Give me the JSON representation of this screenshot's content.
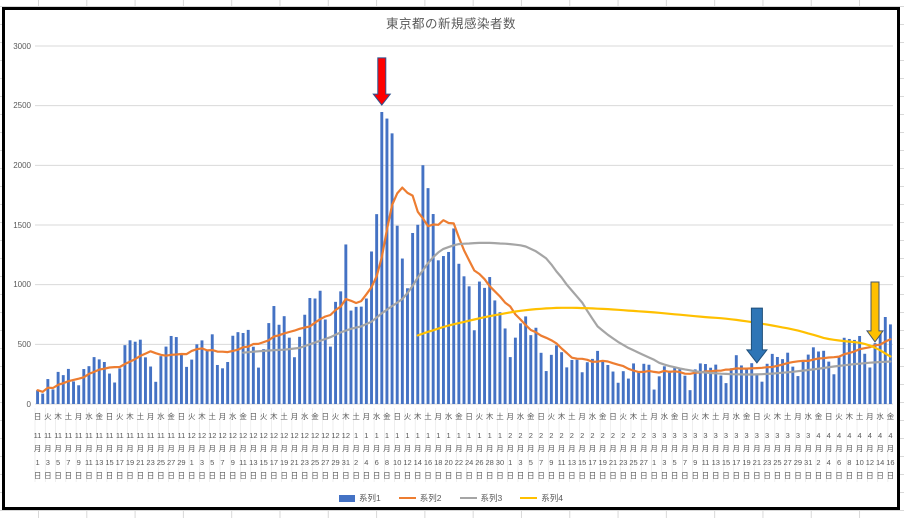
{
  "chart_data": {
    "type": "combo-bar-line",
    "title": "東京都の新規感染者数",
    "legend_position": "bottom",
    "y_axis": {
      "min": 0,
      "max": 3000,
      "step": 500,
      "tick_labels": [
        "0",
        "500",
        "1000",
        "1500",
        "2000",
        "2500",
        "3000"
      ]
    },
    "x_axis": {
      "tick_interval_days": 2,
      "tick_labels": [
        "日 11月1日",
        "火 11月3日",
        "木 11月5日",
        "土 11月7日",
        "月 11月9日",
        "水 11月11日",
        "金 11月13日",
        "日 11月15日",
        "火 11月17日",
        "木 11月19日",
        "土 11月21日",
        "月 11月23日",
        "水 11月25日",
        "金 11月27日",
        "日 11月29日",
        "火 12月1日",
        "木 12月3日",
        "土 12月5日",
        "月 12月7日",
        "水 12月9日",
        "金 12月11日",
        "日 12月13日",
        "火 12月15日",
        "木 12月17日",
        "土 12月19日",
        "月 12月21日",
        "水 12月23日",
        "金 12月25日",
        "日 12月27日",
        "火 12月29日",
        "木 12月31日",
        "土 1月2日",
        "月 1月4日",
        "水 1月6日",
        "金 1月8日",
        "日 1月10日",
        "火 1月12日",
        "木 1月14日",
        "土 1月16日",
        "月 1月18日",
        "水 1月20日",
        "金 1月22日",
        "日 1月24日",
        "火 1月26日",
        "木 1月28日",
        "土 1月30日",
        "月 2月1日",
        "水 2月3日",
        "金 2月5日",
        "日 2月7日",
        "火 2月9日",
        "木 2月11日",
        "土 2月13日",
        "月 2月15日",
        "水 2月17日",
        "金 2月19日",
        "日 2月21日",
        "火 2月23日",
        "木 2月25日",
        "土 2月27日",
        "月 3月1日",
        "水 3月3日",
        "金 3月5日",
        "日 3月7日",
        "火 3月9日",
        "木 3月11日",
        "土 3月13日",
        "月 3月15日",
        "水 3月17日",
        "金 3月19日",
        "日 3月21日",
        "火 3月23日",
        "木 3月25日",
        "土 3月27日",
        "月 3月29日",
        "水 3月31日",
        "金 4月2日",
        "日 4月4日",
        "火 4月6日",
        "木 4月8日",
        "土 4月10日",
        "月 4月12日",
        "水 4月14日",
        "金 4月16日"
      ]
    },
    "series": [
      {
        "name": "系列1",
        "type": "bar",
        "color": "#4472C4",
        "start_index": 0,
        "values": [
          116,
          87,
          209,
          122,
          269,
          242,
          294,
          189,
          157,
          293,
          317,
          393,
          374,
          352,
          255,
          180,
          298,
          493,
          534,
          522,
          539,
          391,
          314,
          186,
          401,
          481,
          570,
          561,
          418,
          311,
          372,
          500,
          533,
          449,
          584,
          327,
          299,
          352,
          572,
          602,
          595,
          621,
          480,
          305,
          460,
          678,
          821,
          664,
          736,
          556,
          392,
          563,
          748,
          888,
          884,
          949,
          708,
          481,
          856,
          944,
          1337,
          783,
          814,
          816,
          884,
          1278,
          1591,
          2447,
          2392,
          2268,
          1494,
          1219,
          970,
          1433,
          1502,
          2001,
          1809,
          1592,
          1204,
          1240,
          1274,
          1471,
          1175,
          1070,
          986,
          618,
          1026,
          973,
          1064,
          868,
          769,
          633,
          393,
          556,
          676,
          734,
          577,
          639,
          429,
          276,
          412,
          491,
          434,
          307,
          369,
          371,
          266,
          350,
          378,
          445,
          353,
          327,
          272,
          178,
          275,
          213,
          340,
          270,
          337,
          329,
          121,
          232,
          316,
          279,
          301,
          293,
          237,
          116,
          290,
          340,
          335,
          304,
          330,
          239,
          175,
          300,
          409,
          323,
          303,
          342,
          256,
          187,
          337,
          420,
          394,
          376,
          430,
          313,
          234,
          364,
          414,
          475,
          440,
          446,
          355,
          249,
          399,
          555,
          545,
          537,
          570,
          421,
          306,
          510,
          591,
          729,
          667
        ]
      },
      {
        "name": "系列2",
        "type": "line",
        "color": "#ED7D31",
        "start_index": 0,
        "values": [
          116,
          102,
          137,
          134,
          161,
          174,
          191,
          202,
          212,
          224,
          252,
          269,
          288,
          296,
          306,
          309,
          310,
          335,
          355,
          376,
          403,
          422,
          442,
          426,
          412,
          405,
          412,
          415,
          419,
          418,
          445,
          459,
          466,
          449,
          452,
          439,
          438,
          435,
          445,
          455,
          476,
          481,
          503,
          504,
          519,
          534,
          566,
          576,
          592,
          603,
          615,
          630,
          640,
          650,
          681,
          711,
          733,
          746,
          788,
          816,
          880,
          865,
          846,
          862,
          919,
          979,
          1072,
          1230,
          1460,
          1668,
          1765,
          1813,
          1769,
          1746,
          1611,
          1555,
          1490,
          1504,
          1502,
          1540,
          1517,
          1513,
          1395,
          1289,
          1203,
          1119,
          1089,
          1046,
          987,
          944,
          901,
          850,
          818,
          751,
          708,
          661,
          620,
          601,
          572,
          555,
          535,
          508,
          465,
          427,
          388,
          380,
          379,
          370,
          354,
          355,
          362,
          356,
          342,
          329,
          318,
          295,
          280,
          268,
          269,
          277,
          269,
          263,
          278,
          269,
          274,
          267,
          254,
          253,
          262,
          265,
          273,
          274,
          279,
          279,
          288,
          289,
          299,
          297,
          297,
          299,
          301,
          303,
          308,
          310,
          320,
          330,
          343,
          351,
          358,
          362,
          361,
          372,
          381,
          384,
          390,
          392,
          397,
          417,
          427,
          441,
          459,
          468,
          476,
          492,
          497,
          523,
          542
        ]
      },
      {
        "name": "系列3",
        "type": "line",
        "color": "#A5A5A5",
        "start_index": 40,
        "values": [
          430,
          434,
          438,
          442,
          445,
          448,
          451,
          453,
          455,
          460,
          465,
          470,
          485,
          500,
          515,
          530,
          545,
          560,
          580,
          600,
          615,
          630,
          640,
          650,
          670,
          690,
          725,
          760,
          790,
          820,
          850,
          880,
          930,
          990,
          1060,
          1120,
          1180,
          1230,
          1270,
          1300,
          1315,
          1330,
          1340,
          1343,
          1345,
          1348,
          1350,
          1350,
          1350,
          1348,
          1345,
          1343,
          1340,
          1335,
          1330,
          1320,
          1300,
          1280,
          1250,
          1220,
          1170,
          1110,
          1060,
          1000,
          950,
          900,
          850,
          780,
          715,
          650,
          615,
          580,
          550,
          520,
          495,
          470,
          450,
          430,
          410,
          390,
          370,
          345,
          330,
          318,
          308,
          298,
          290,
          282,
          274,
          268,
          264,
          260,
          257,
          254,
          252,
          250,
          249,
          248,
          247,
          247,
          248,
          250,
          252,
          255,
          258,
          262,
          266,
          270,
          275,
          280,
          285,
          290,
          296,
          302,
          308,
          314,
          319,
          324,
          329,
          334,
          338,
          342,
          346,
          349,
          352,
          354,
          356
        ]
      },
      {
        "name": "系列4",
        "type": "line",
        "color": "#FFC000",
        "start_index": 74,
        "values": [
          575,
          590,
          605,
          618,
          632,
          645,
          658,
          668,
          678,
          688,
          698,
          708,
          718,
          727,
          736,
          744,
          752,
          760,
          768,
          775,
          781,
          786,
          791,
          795,
          798,
          801,
          803,
          805,
          806,
          806,
          806,
          805,
          804,
          803,
          801,
          799,
          797,
          795,
          792,
          789,
          786,
          783,
          780,
          777,
          774,
          771,
          768,
          764,
          760,
          756,
          752,
          748,
          744,
          740,
          736,
          732,
          728,
          725,
          722,
          719,
          715,
          710,
          705,
          699,
          693,
          686,
          679,
          672,
          665,
          658,
          650,
          642,
          634,
          625,
          615,
          604,
          592,
          580,
          567,
          554,
          545,
          538,
          532,
          527,
          523,
          519,
          513,
          504,
          490,
          472,
          450,
          424,
          398
        ]
      }
    ],
    "annotations": [
      {
        "id": "red-down-arrow",
        "shape": "arrow-down",
        "fill": "#FF0000",
        "stroke": "#2F528F",
        "x_index": 67,
        "y_top_value": 2900,
        "y_tip_value": 2505,
        "shaft_w": 8,
        "head_w": 17,
        "head_h": 11
      },
      {
        "id": "blue-down-arrow",
        "shape": "arrow-down",
        "fill": "#2E75B6",
        "stroke": "#1F4E79",
        "x_index": 140,
        "y_top_value": 804,
        "y_tip_value": 344,
        "shaft_w": 11,
        "head_w": 20,
        "head_h": 13
      },
      {
        "id": "yellow-down-arrow",
        "shape": "arrow-down",
        "fill": "#FFC000",
        "stroke": "#44546A",
        "x_index": 163,
        "y_top_value": 1022,
        "y_tip_value": 520,
        "shaft_w": 8,
        "head_w": 16,
        "head_h": 11
      }
    ]
  },
  "styles": {
    "axis_text_color": "#595959",
    "gridline_color": "#D9D9D9",
    "axis_boundary_line_color": "#E4E4E4",
    "chart_border_color": "#000000",
    "sheet_gridline_color": "#D8D8D8",
    "background": "#FFFFFF"
  }
}
